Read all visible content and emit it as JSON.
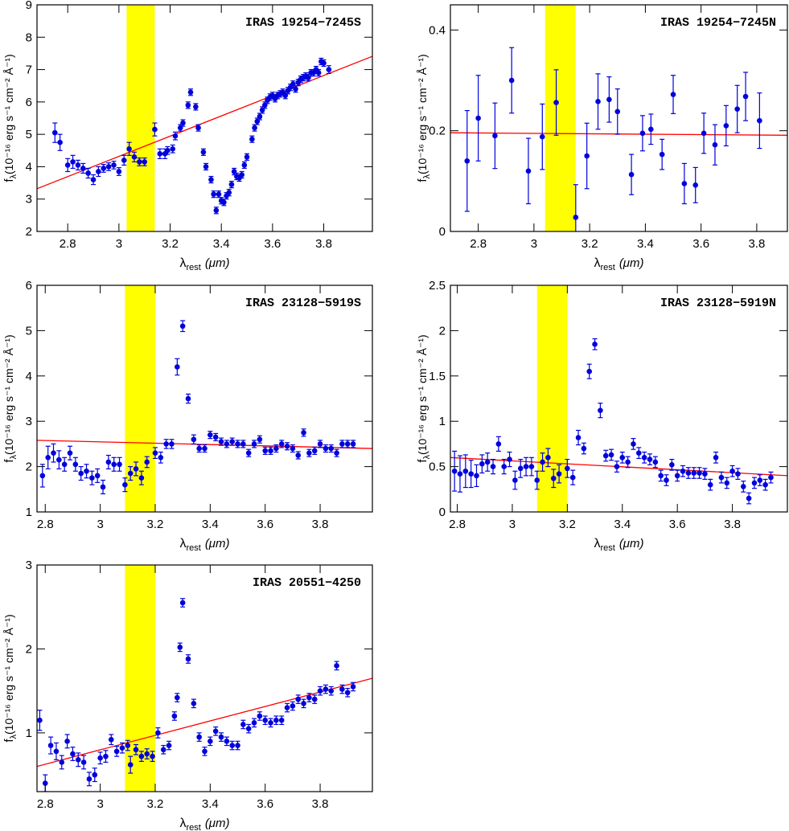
{
  "chart_data": [
    {
      "type": "scatter",
      "title": "IRAS 19254−7245S",
      "x_label": {
        "symbol": "λ",
        "subscript": "rest",
        "unit": "(μm)"
      },
      "y_label": {
        "symbol": "f",
        "subscript": "λ",
        "unit": "(10⁻¹⁶ erg s⁻¹ cm⁻² Å⁻¹)"
      },
      "xlim": [
        2.68,
        3.99
      ],
      "xticks": [
        2.8,
        3,
        3.2,
        3.4,
        3.6,
        3.8
      ],
      "ylim": [
        2,
        9
      ],
      "yticks": [
        2,
        3,
        4,
        5,
        6,
        7,
        8,
        9
      ],
      "band": [
        3.03,
        3.14
      ],
      "band_color": "#ffff00",
      "series": [
        {
          "color": "#0000dd",
          "x": [
            2.75,
            2.77,
            2.8,
            2.82,
            2.84,
            2.86,
            2.88,
            2.9,
            2.92,
            2.94,
            2.96,
            2.98,
            3.0,
            3.02,
            3.04,
            3.06,
            3.08,
            3.1,
            3.14,
            3.16,
            3.18,
            3.19,
            3.21,
            3.22,
            3.24,
            3.25,
            3.27,
            3.28,
            3.3,
            3.31,
            3.33,
            3.34,
            3.36,
            3.37,
            3.38,
            3.39,
            3.4,
            3.41,
            3.42,
            3.43,
            3.44,
            3.45,
            3.46,
            3.47,
            3.48,
            3.49,
            3.5,
            3.52,
            3.53,
            3.54,
            3.55,
            3.56,
            3.57,
            3.58,
            3.59,
            3.6,
            3.61,
            3.62,
            3.63,
            3.64,
            3.65,
            3.66,
            3.67,
            3.68,
            3.69,
            3.7,
            3.71,
            3.72,
            3.73,
            3.74,
            3.75,
            3.76,
            3.77,
            3.78,
            3.79,
            3.8,
            3.82
          ],
          "values": [
            5.05,
            4.75,
            4.05,
            4.15,
            4.05,
            3.95,
            3.8,
            3.6,
            3.85,
            3.95,
            4.0,
            4.05,
            3.85,
            4.2,
            4.55,
            4.3,
            4.15,
            4.15,
            5.15,
            4.4,
            4.4,
            4.5,
            4.55,
            4.95,
            5.2,
            5.35,
            5.9,
            6.3,
            5.85,
            5.2,
            4.45,
            4.0,
            3.6,
            3.15,
            2.65,
            3.15,
            2.95,
            2.9,
            3.1,
            3.2,
            3.45,
            3.85,
            3.7,
            3.65,
            3.75,
            4.05,
            4.3,
            4.85,
            5.2,
            5.4,
            5.55,
            5.75,
            5.9,
            6.05,
            6.15,
            6.2,
            6.1,
            6.2,
            6.25,
            6.3,
            6.2,
            6.35,
            6.45,
            6.55,
            6.4,
            6.6,
            6.7,
            6.75,
            6.8,
            6.75,
            6.9,
            6.9,
            7.0,
            6.9,
            7.25,
            7.2,
            7.0
          ],
          "errors": [
            0.3,
            0.25,
            0.2,
            0.2,
            0.15,
            0.15,
            0.15,
            0.15,
            0.15,
            0.12,
            0.12,
            0.12,
            0.12,
            0.15,
            0.2,
            0.15,
            0.12,
            0.12,
            0.2,
            0.15,
            0.15,
            0.12,
            0.12,
            0.12,
            0.1,
            0.1,
            0.1,
            0.1,
            0.1,
            0.1,
            0.1,
            0.1,
            0.1,
            0.1,
            0.1,
            0.1,
            0.1,
            0.1,
            0.1,
            0.1,
            0.1,
            0.1,
            0.1,
            0.1,
            0.1,
            0.1,
            0.1,
            0.1,
            0.1,
            0.1,
            0.1,
            0.1,
            0.1,
            0.1,
            0.1,
            0.1,
            0.1,
            0.1,
            0.1,
            0.1,
            0.1,
            0.1,
            0.1,
            0.1,
            0.1,
            0.1,
            0.1,
            0.1,
            0.1,
            0.1,
            0.1,
            0.1,
            0.1,
            0.1,
            0.1,
            0.1,
            0.12
          ]
        }
      ],
      "fit": {
        "color": "#ff0000",
        "x": [
          2.68,
          3.99
        ],
        "values": [
          3.32,
          7.41
        ]
      }
    },
    {
      "type": "scatter",
      "title": "IRAS 19254−7245N",
      "x_label": {
        "symbol": "λ",
        "subscript": "rest",
        "unit": "(μm)"
      },
      "y_label": {
        "symbol": "f",
        "subscript": "λ",
        "unit": "(10⁻¹⁶ erg s⁻¹ cm⁻² Å⁻¹)"
      },
      "xlim": [
        2.7,
        3.91
      ],
      "xticks": [
        2.8,
        3,
        3.2,
        3.4,
        3.6,
        3.8
      ],
      "ylim": [
        0,
        0.45
      ],
      "yticks": [
        0,
        0.2,
        0.4
      ],
      "band": [
        3.04,
        3.15
      ],
      "band_color": "#ffff00",
      "series": [
        {
          "color": "#0000dd",
          "x": [
            2.76,
            2.8,
            2.86,
            2.92,
            2.98,
            3.03,
            3.08,
            3.15,
            3.19,
            3.23,
            3.27,
            3.3,
            3.35,
            3.39,
            3.42,
            3.46,
            3.5,
            3.54,
            3.58,
            3.61,
            3.65,
            3.69,
            3.73,
            3.76,
            3.81
          ],
          "values": [
            0.14,
            0.225,
            0.19,
            0.3,
            0.12,
            0.188,
            0.256,
            0.028,
            0.15,
            0.258,
            0.262,
            0.238,
            0.113,
            0.195,
            0.203,
            0.153,
            0.272,
            0.095,
            0.092,
            0.195,
            0.172,
            0.21,
            0.243,
            0.268,
            0.22
          ],
          "errors": [
            0.1,
            0.085,
            0.065,
            0.065,
            0.065,
            0.065,
            0.065,
            0.065,
            0.065,
            0.055,
            0.045,
            0.045,
            0.04,
            0.035,
            0.03,
            0.03,
            0.038,
            0.04,
            0.035,
            0.04,
            0.04,
            0.04,
            0.047,
            0.048,
            0.055
          ]
        }
      ],
      "fit": {
        "color": "#ff0000",
        "x": [
          2.7,
          3.91
        ],
        "values": [
          0.196,
          0.191
        ]
      }
    },
    {
      "type": "scatter",
      "title": "IRAS 23128−5919S",
      "x_label": {
        "symbol": "λ",
        "subscript": "rest",
        "unit": "(μm)"
      },
      "y_label": {
        "symbol": "f",
        "subscript": "λ",
        "unit": "(10⁻¹⁶ erg s⁻¹ cm⁻² Å⁻¹)"
      },
      "xlim": [
        2.77,
        3.99
      ],
      "xticks": [
        2.8,
        3,
        3.2,
        3.4,
        3.6,
        3.8
      ],
      "ylim": [
        1,
        6
      ],
      "yticks": [
        1,
        2,
        3,
        4,
        5,
        6
      ],
      "band": [
        3.09,
        3.2
      ],
      "band_color": "#ffff00",
      "series": [
        {
          "color": "#0000dd",
          "x": [
            2.79,
            2.81,
            2.83,
            2.85,
            2.87,
            2.89,
            2.91,
            2.93,
            2.95,
            2.97,
            2.99,
            3.01,
            3.03,
            3.05,
            3.07,
            3.09,
            3.11,
            3.13,
            3.15,
            3.17,
            3.2,
            3.22,
            3.24,
            3.26,
            3.28,
            3.3,
            3.32,
            3.34,
            3.36,
            3.38,
            3.4,
            3.42,
            3.44,
            3.46,
            3.48,
            3.5,
            3.52,
            3.54,
            3.56,
            3.58,
            3.6,
            3.62,
            3.64,
            3.66,
            3.68,
            3.7,
            3.72,
            3.74,
            3.76,
            3.78,
            3.8,
            3.82,
            3.84,
            3.86,
            3.88,
            3.9,
            3.92
          ],
          "values": [
            1.8,
            2.2,
            2.3,
            2.15,
            2.05,
            2.3,
            2.05,
            1.85,
            1.9,
            1.75,
            1.8,
            1.55,
            2.1,
            2.05,
            2.05,
            1.6,
            1.85,
            1.95,
            1.75,
            2.1,
            2.3,
            2.2,
            2.5,
            2.5,
            4.2,
            5.1,
            3.5,
            2.6,
            2.4,
            2.4,
            2.7,
            2.65,
            2.55,
            2.5,
            2.55,
            2.5,
            2.5,
            2.3,
            2.5,
            2.6,
            2.35,
            2.35,
            2.4,
            2.5,
            2.45,
            2.4,
            2.25,
            2.75,
            2.3,
            2.35,
            2.5,
            2.4,
            2.4,
            2.3,
            2.5,
            2.5,
            2.5
          ],
          "errors": [
            0.25,
            0.25,
            0.2,
            0.2,
            0.15,
            0.15,
            0.15,
            0.15,
            0.15,
            0.15,
            0.15,
            0.15,
            0.15,
            0.15,
            0.15,
            0.15,
            0.15,
            0.15,
            0.15,
            0.12,
            0.12,
            0.12,
            0.1,
            0.1,
            0.18,
            0.12,
            0.1,
            0.1,
            0.08,
            0.08,
            0.08,
            0.08,
            0.08,
            0.08,
            0.08,
            0.08,
            0.08,
            0.08,
            0.08,
            0.08,
            0.08,
            0.08,
            0.08,
            0.08,
            0.08,
            0.08,
            0.08,
            0.08,
            0.08,
            0.08,
            0.08,
            0.08,
            0.08,
            0.08,
            0.08,
            0.08,
            0.08
          ]
        }
      ],
      "fit": {
        "color": "#ff0000",
        "x": [
          2.77,
          3.99
        ],
        "values": [
          2.58,
          2.4
        ]
      }
    },
    {
      "type": "scatter",
      "title": "IRAS 23128−5919N",
      "x_label": {
        "symbol": "λ",
        "subscript": "rest",
        "unit": "(μm)"
      },
      "y_label": {
        "symbol": "f",
        "subscript": "λ",
        "unit": "(10⁻¹⁶ erg s⁻¹ cm⁻² Å⁻¹)"
      },
      "xlim": [
        2.775,
        4.0
      ],
      "xticks": [
        2.8,
        3,
        3.2,
        3.4,
        3.6,
        3.8
      ],
      "ylim": [
        0,
        2.5
      ],
      "yticks": [
        0,
        0.5,
        1,
        1.5,
        2,
        2.5
      ],
      "band": [
        3.09,
        3.2
      ],
      "band_color": "#ffff00",
      "series": [
        {
          "color": "#0000dd",
          "x": [
            2.79,
            2.81,
            2.83,
            2.85,
            2.87,
            2.89,
            2.91,
            2.93,
            2.95,
            2.97,
            2.99,
            3.01,
            3.03,
            3.05,
            3.07,
            3.09,
            3.11,
            3.13,
            3.15,
            3.17,
            3.2,
            3.22,
            3.24,
            3.26,
            3.28,
            3.3,
            3.32,
            3.34,
            3.36,
            3.38,
            3.4,
            3.42,
            3.44,
            3.46,
            3.48,
            3.5,
            3.52,
            3.54,
            3.56,
            3.58,
            3.6,
            3.62,
            3.64,
            3.66,
            3.68,
            3.7,
            3.72,
            3.74,
            3.76,
            3.78,
            3.8,
            3.82,
            3.84,
            3.86,
            3.88,
            3.9,
            3.92,
            3.94
          ],
          "values": [
            0.45,
            0.42,
            0.45,
            0.42,
            0.4,
            0.53,
            0.55,
            0.5,
            0.75,
            0.5,
            0.58,
            0.35,
            0.48,
            0.5,
            0.5,
            0.35,
            0.55,
            0.6,
            0.37,
            0.42,
            0.48,
            0.38,
            0.82,
            0.7,
            1.55,
            1.85,
            1.12,
            0.62,
            0.63,
            0.5,
            0.6,
            0.55,
            0.75,
            0.65,
            0.6,
            0.58,
            0.55,
            0.4,
            0.35,
            0.52,
            0.4,
            0.45,
            0.43,
            0.43,
            0.43,
            0.42,
            0.3,
            0.6,
            0.38,
            0.32,
            0.45,
            0.42,
            0.28,
            0.15,
            0.32,
            0.35,
            0.3,
            0.38
          ],
          "errors": [
            0.22,
            0.2,
            0.18,
            0.15,
            0.12,
            0.1,
            0.1,
            0.08,
            0.08,
            0.08,
            0.08,
            0.1,
            0.1,
            0.1,
            0.1,
            0.1,
            0.1,
            0.1,
            0.1,
            0.1,
            0.1,
            0.08,
            0.08,
            0.06,
            0.08,
            0.06,
            0.08,
            0.06,
            0.06,
            0.06,
            0.06,
            0.06,
            0.06,
            0.06,
            0.06,
            0.06,
            0.06,
            0.06,
            0.06,
            0.06,
            0.06,
            0.06,
            0.06,
            0.06,
            0.06,
            0.06,
            0.06,
            0.06,
            0.06,
            0.06,
            0.06,
            0.06,
            0.06,
            0.06,
            0.06,
            0.06,
            0.06,
            0.06
          ]
        }
      ],
      "fit": {
        "color": "#ff0000",
        "x": [
          2.775,
          4.0
        ],
        "values": [
          0.6,
          0.4
        ]
      }
    },
    {
      "type": "scatter",
      "title": "IRAS 20551−4250",
      "x_label": {
        "symbol": "λ",
        "subscript": "rest",
        "unit": "(μm)"
      },
      "y_label": {
        "symbol": "f",
        "subscript": "λ",
        "unit": "(10⁻¹⁶ erg s⁻¹ cm⁻² Å⁻¹)"
      },
      "xlim": [
        2.77,
        3.99
      ],
      "xticks": [
        2.8,
        3,
        3.2,
        3.4,
        3.6,
        3.8
      ],
      "ylim": [
        0.3,
        3
      ],
      "yticks": [
        1,
        2,
        3
      ],
      "band": [
        3.09,
        3.2
      ],
      "band_color": "#ffff00",
      "series": [
        {
          "color": "#0000dd",
          "x": [
            2.78,
            2.8,
            2.82,
            2.84,
            2.86,
            2.88,
            2.9,
            2.92,
            2.94,
            2.96,
            2.98,
            3.0,
            3.02,
            3.04,
            3.06,
            3.08,
            3.1,
            3.11,
            3.13,
            3.15,
            3.17,
            3.19,
            3.21,
            3.23,
            3.25,
            3.27,
            3.28,
            3.29,
            3.3,
            3.32,
            3.34,
            3.36,
            3.38,
            3.4,
            3.42,
            3.44,
            3.46,
            3.48,
            3.5,
            3.52,
            3.54,
            3.56,
            3.58,
            3.6,
            3.62,
            3.64,
            3.66,
            3.68,
            3.7,
            3.72,
            3.74,
            3.76,
            3.78,
            3.8,
            3.82,
            3.84,
            3.86,
            3.88,
            3.9,
            3.92
          ],
          "values": [
            1.15,
            0.4,
            0.85,
            0.78,
            0.65,
            0.9,
            0.75,
            0.68,
            0.65,
            0.45,
            0.5,
            0.7,
            0.72,
            0.92,
            0.78,
            0.82,
            0.85,
            0.62,
            0.8,
            0.72,
            0.75,
            0.72,
            1.0,
            0.8,
            0.85,
            1.2,
            1.42,
            2.02,
            2.55,
            1.88,
            1.35,
            0.95,
            0.78,
            0.9,
            1.02,
            0.95,
            0.9,
            0.85,
            0.85,
            1.1,
            1.05,
            1.12,
            1.2,
            1.15,
            1.12,
            1.15,
            1.15,
            1.3,
            1.32,
            1.4,
            1.35,
            1.42,
            1.4,
            1.5,
            1.52,
            1.5,
            1.8,
            1.52,
            1.48,
            1.55
          ],
          "errors": [
            0.12,
            0.1,
            0.1,
            0.1,
            0.08,
            0.08,
            0.08,
            0.08,
            0.08,
            0.08,
            0.08,
            0.07,
            0.07,
            0.06,
            0.06,
            0.06,
            0.06,
            0.1,
            0.06,
            0.06,
            0.06,
            0.06,
            0.06,
            0.05,
            0.05,
            0.05,
            0.05,
            0.05,
            0.05,
            0.05,
            0.05,
            0.05,
            0.05,
            0.05,
            0.05,
            0.05,
            0.05,
            0.05,
            0.05,
            0.05,
            0.05,
            0.05,
            0.05,
            0.05,
            0.05,
            0.05,
            0.05,
            0.05,
            0.05,
            0.05,
            0.05,
            0.05,
            0.05,
            0.05,
            0.05,
            0.05,
            0.05,
            0.05,
            0.05,
            0.05
          ]
        }
      ],
      "fit": {
        "color": "#ff0000",
        "x": [
          2.77,
          3.99
        ],
        "values": [
          0.6,
          1.65
        ]
      }
    }
  ]
}
